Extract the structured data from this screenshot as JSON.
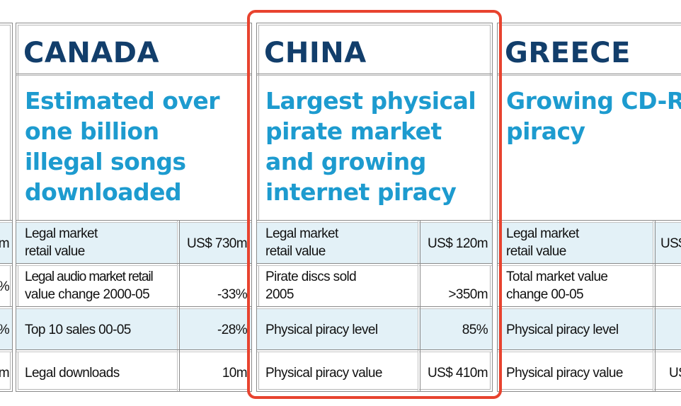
{
  "left_fragment": {
    "values": [
      "m",
      "%",
      "%",
      "m"
    ]
  },
  "columns": [
    {
      "country": "CANADA",
      "headline": [
        "Estimated over",
        "one billion",
        "illegal songs",
        "downloaded"
      ],
      "rows": [
        {
          "label": [
            "Legal market",
            "retail value"
          ],
          "value": "US$ 730m"
        },
        {
          "label": [
            "Legal audio market retail",
            "value change 2000-05"
          ],
          "value": "-33%"
        },
        {
          "label": [
            "Top 10 sales 00-05"
          ],
          "value": "-28%"
        },
        {
          "label": [
            "Legal downloads"
          ],
          "value": "10m"
        }
      ]
    },
    {
      "country": "CHINA",
      "headline": [
        "Largest physical",
        "pirate market",
        "and growing",
        "internet piracy"
      ],
      "rows": [
        {
          "label": [
            "Legal market",
            "retail value"
          ],
          "value": "US$ 120m"
        },
        {
          "label": [
            "Pirate discs sold",
            "2005"
          ],
          "value": ">350m"
        },
        {
          "label": [
            "Physical piracy level"
          ],
          "value": "85%"
        },
        {
          "label": [
            "Physical piracy value"
          ],
          "value": "US$ 410m"
        }
      ]
    },
    {
      "country": "GREECE",
      "headline": [
        "Growing CD-R",
        "piracy"
      ],
      "rows": [
        {
          "label": [
            "Legal market",
            "retail value"
          ],
          "value": "US$"
        },
        {
          "label": [
            "Total market value",
            "change 00-05"
          ],
          "value": ""
        },
        {
          "label": [
            "Physical piracy level"
          ],
          "value": ""
        },
        {
          "label": [
            "Physical piracy value"
          ],
          "value": "US"
        }
      ]
    }
  ],
  "colors": {
    "country_text": "#123e6b",
    "headline_text": "#1d9bcf",
    "row_shade": "#e3f1f7",
    "highlight_border": "#e8432f"
  }
}
